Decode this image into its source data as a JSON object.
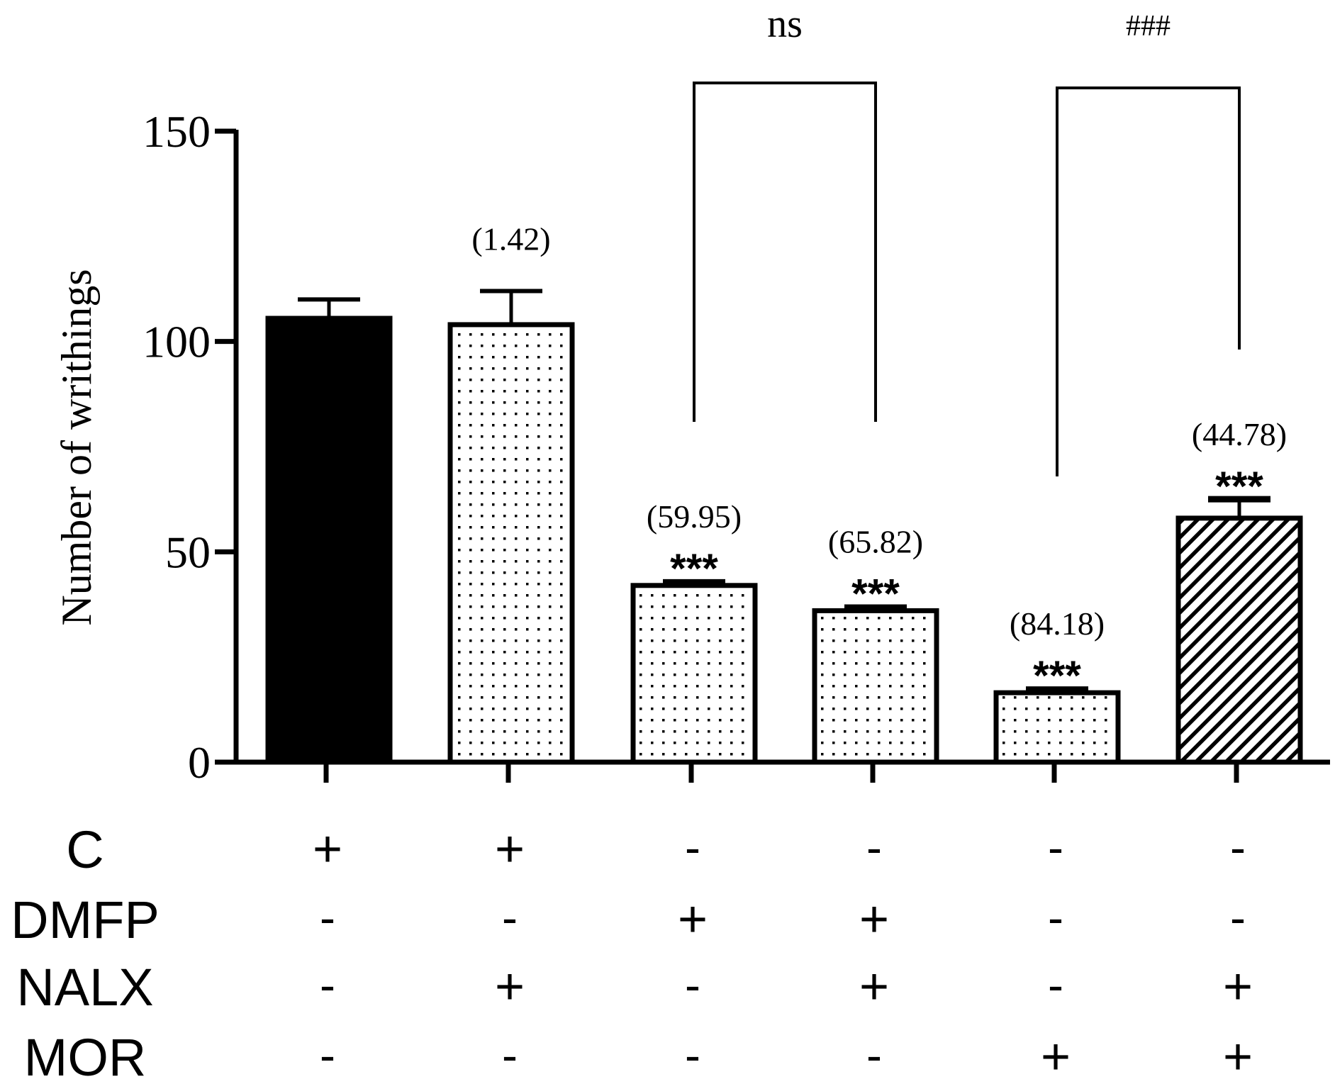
{
  "chart_data": {
    "type": "bar",
    "ylabel": "Number of writhings",
    "ylim": [
      0,
      150
    ],
    "yticks": [
      "0",
      "50",
      "100",
      "150"
    ],
    "bars": [
      {
        "value": 105.5,
        "error": 4.5,
        "pattern": "solid",
        "percent_label": "",
        "sig": ""
      },
      {
        "value": 104,
        "error": 8,
        "pattern": "dots",
        "percent_label": "(1.42)",
        "sig": ""
      },
      {
        "value": 42,
        "error": 1,
        "pattern": "dots",
        "percent_label": "(59.95)",
        "sig": "***"
      },
      {
        "value": 36,
        "error": 1,
        "pattern": "dots",
        "percent_label": "(65.82)",
        "sig": "***"
      },
      {
        "value": 16.5,
        "error": 1,
        "pattern": "dots",
        "percent_label": "(84.18)",
        "sig": "***"
      },
      {
        "value": 58,
        "error": 4.5,
        "pattern": "hatch",
        "percent_label": "(44.78)",
        "sig": "***"
      }
    ],
    "comparisons": [
      {
        "from": 2,
        "to": 3,
        "label": "ns"
      },
      {
        "from": 4,
        "to": 5,
        "label": "###"
      }
    ],
    "treatment_table": {
      "rows": [
        {
          "label": "C",
          "values": [
            "+",
            "+",
            "-",
            "-",
            "-",
            "-"
          ]
        },
        {
          "label": "DMFP",
          "values": [
            "-",
            "-",
            "+",
            "+",
            "-",
            "-"
          ]
        },
        {
          "label": "NALX",
          "values": [
            "-",
            "+",
            "-",
            "+",
            "-",
            "+"
          ]
        },
        {
          "label": "MOR",
          "values": [
            "-",
            "-",
            "-",
            "-",
            "+",
            "+"
          ]
        }
      ]
    },
    "colors": {
      "ink": "#000000",
      "background": "#ffffff"
    }
  }
}
